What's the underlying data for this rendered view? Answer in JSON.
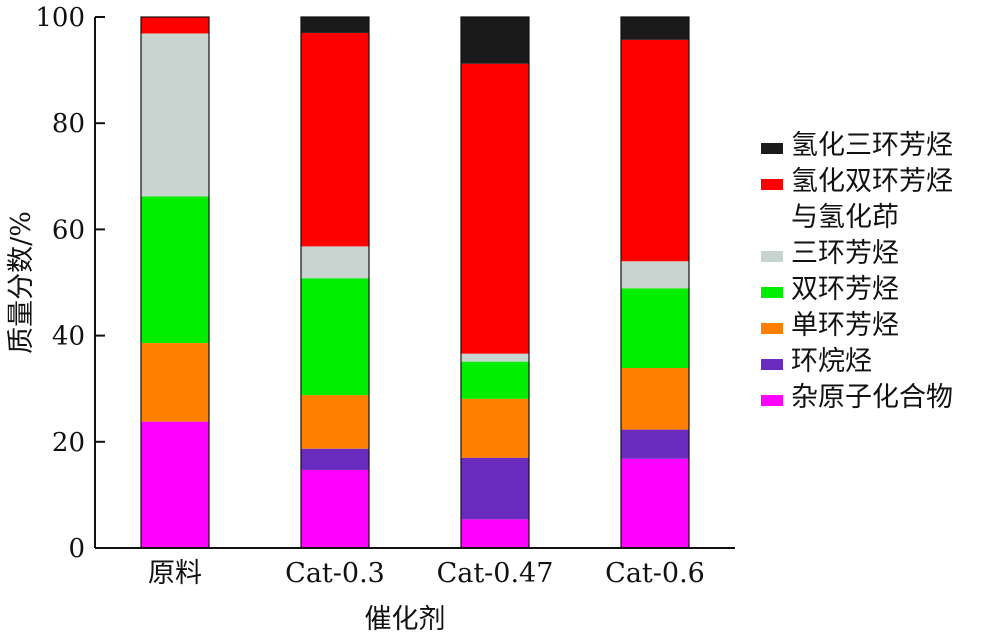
{
  "chart_data": {
    "type": "stacked_bar",
    "categories": [
      "原料",
      "Cat-0.3",
      "Cat-0.47",
      "Cat-0.6"
    ],
    "xlabel": "催化剂",
    "ylabel": "质量分数/%",
    "ylim": [
      0,
      100
    ],
    "yticks": [
      "0",
      "20",
      "40",
      "60",
      "80",
      "100"
    ],
    "grid": false,
    "legend_position": "right",
    "series": [
      {
        "name": "杂原子化合物",
        "color": "#ff00ff",
        "values": [
          23.8,
          14.7,
          5.4,
          16.8
        ]
      },
      {
        "name": "环烷烃",
        "color": "#6a2bbf",
        "values": [
          0,
          4.0,
          11.6,
          5.5
        ]
      },
      {
        "name": "单环芳烃",
        "color": "#ff8000",
        "values": [
          14.8,
          10.1,
          11.1,
          11.6
        ]
      },
      {
        "name": "双环芳烃",
        "color": "#00ee00",
        "values": [
          27.6,
          22.0,
          7.0,
          15.0
        ]
      },
      {
        "name": "三环芳烃",
        "color": "#c8d4d0",
        "values": [
          30.7,
          6.0,
          1.5,
          5.1
        ]
      },
      {
        "name": "氢化双环芳烃\n与氢化茚",
        "color": "#ff0000",
        "values": [
          3.1,
          40.2,
          54.6,
          41.7
        ]
      },
      {
        "name": "氢化三环芳烃",
        "color": "#1a1a1a",
        "values": [
          0,
          3.0,
          8.8,
          4.3
        ]
      }
    ]
  }
}
